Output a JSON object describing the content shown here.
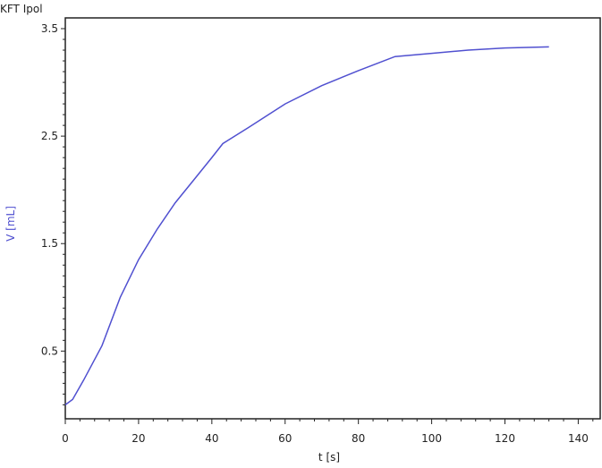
{
  "chart_data": {
    "type": "line",
    "title": "KFT Ipol",
    "xlabel": "t [s]",
    "ylabel": "V [mL]",
    "xlim": [
      0,
      146
    ],
    "ylim": [
      -0.13,
      3.6
    ],
    "x_ticks": [
      0,
      20,
      40,
      60,
      80,
      100,
      120,
      140
    ],
    "y_ticks": [
      0.5,
      1.5,
      2.5,
      3.5
    ],
    "grid": false,
    "colors": {
      "series": "#5050d0",
      "ylabel": "#5050d0",
      "axis": "#222222"
    },
    "series": [
      {
        "x": [
          0,
          2,
          5,
          10,
          15,
          20,
          25,
          30,
          35,
          40,
          43,
          50,
          60,
          70,
          80,
          90,
          100,
          110,
          120,
          132
        ],
        "y": [
          0.0,
          0.05,
          0.23,
          0.55,
          1.0,
          1.35,
          1.63,
          1.88,
          2.09,
          2.3,
          2.43,
          2.58,
          2.8,
          2.97,
          3.11,
          3.24,
          3.27,
          3.3,
          3.32,
          3.33
        ]
      }
    ]
  }
}
